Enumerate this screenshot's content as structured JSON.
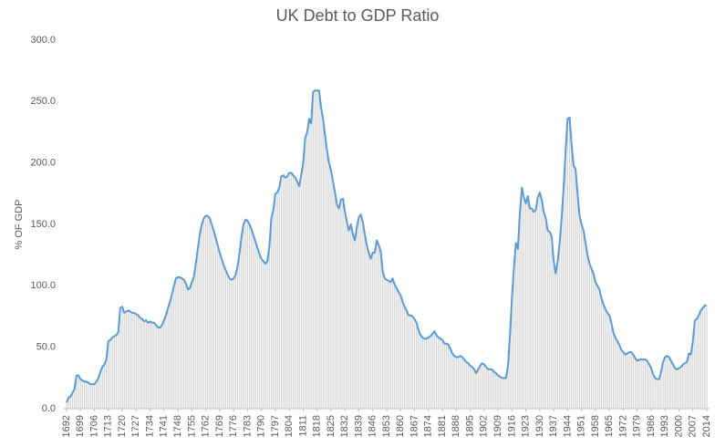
{
  "chart_data": {
    "type": "line",
    "title": "UK Debt to GDP Ratio",
    "y_label": "% OF GDP",
    "x": [
      1692,
      1693,
      1694,
      1695,
      1696,
      1697,
      1698,
      1699,
      1700,
      1701,
      1702,
      1703,
      1704,
      1705,
      1706,
      1707,
      1708,
      1709,
      1710,
      1711,
      1712,
      1713,
      1714,
      1715,
      1716,
      1717,
      1718,
      1719,
      1720,
      1721,
      1722,
      1723,
      1724,
      1725,
      1726,
      1727,
      1728,
      1729,
      1730,
      1731,
      1732,
      1733,
      1734,
      1735,
      1736,
      1737,
      1738,
      1739,
      1740,
      1741,
      1742,
      1743,
      1744,
      1745,
      1746,
      1747,
      1748,
      1749,
      1750,
      1751,
      1752,
      1753,
      1754,
      1755,
      1756,
      1757,
      1758,
      1759,
      1760,
      1761,
      1762,
      1763,
      1764,
      1765,
      1766,
      1767,
      1768,
      1769,
      1770,
      1771,
      1772,
      1773,
      1774,
      1775,
      1776,
      1777,
      1778,
      1779,
      1780,
      1781,
      1782,
      1783,
      1784,
      1785,
      1786,
      1787,
      1788,
      1789,
      1790,
      1791,
      1792,
      1793,
      1794,
      1795,
      1796,
      1797,
      1798,
      1799,
      1800,
      1801,
      1802,
      1803,
      1804,
      1805,
      1806,
      1807,
      1808,
      1809,
      1810,
      1811,
      1812,
      1813,
      1814,
      1815,
      1816,
      1817,
      1818,
      1819,
      1820,
      1821,
      1822,
      1823,
      1824,
      1825,
      1826,
      1827,
      1828,
      1829,
      1830,
      1831,
      1832,
      1833,
      1834,
      1835,
      1836,
      1837,
      1838,
      1839,
      1840,
      1841,
      1842,
      1843,
      1844,
      1845,
      1846,
      1847,
      1848,
      1849,
      1850,
      1851,
      1852,
      1853,
      1854,
      1855,
      1856,
      1857,
      1858,
      1859,
      1860,
      1861,
      1862,
      1863,
      1864,
      1865,
      1866,
      1867,
      1868,
      1869,
      1870,
      1871,
      1872,
      1873,
      1874,
      1875,
      1876,
      1877,
      1878,
      1879,
      1880,
      1881,
      1882,
      1883,
      1884,
      1885,
      1886,
      1887,
      1888,
      1889,
      1890,
      1891,
      1892,
      1893,
      1894,
      1895,
      1896,
      1897,
      1898,
      1899,
      1900,
      1901,
      1902,
      1903,
      1904,
      1905,
      1906,
      1907,
      1908,
      1909,
      1910,
      1911,
      1912,
      1913,
      1914,
      1915,
      1916,
      1917,
      1918,
      1919,
      1920,
      1921,
      1922,
      1923,
      1924,
      1925,
      1926,
      1927,
      1928,
      1929,
      1930,
      1931,
      1932,
      1933,
      1934,
      1935,
      1936,
      1937,
      1938,
      1939,
      1940,
      1941,
      1942,
      1943,
      1944,
      1945,
      1946,
      1947,
      1948,
      1949,
      1950,
      1951,
      1952,
      1953,
      1954,
      1955,
      1956,
      1957,
      1958,
      1959,
      1960,
      1961,
      1962,
      1963,
      1964,
      1965,
      1966,
      1967,
      1968,
      1969,
      1970,
      1971,
      1972,
      1973,
      1974,
      1975,
      1976,
      1977,
      1978,
      1979,
      1980,
      1981,
      1982,
      1983,
      1984,
      1985,
      1986,
      1987,
      1988,
      1989,
      1990,
      1991,
      1992,
      1993,
      1994,
      1995,
      1996,
      1997,
      1998,
      1999,
      2000,
      2001,
      2002,
      2003,
      2004,
      2005,
      2006,
      2007,
      2008,
      2009,
      2010,
      2011,
      2012,
      2013,
      2014
    ],
    "values": [
      5,
      9,
      10,
      13,
      16,
      27,
      27,
      24,
      23,
      22,
      22,
      21,
      20,
      20,
      20,
      22,
      25,
      30,
      34,
      36,
      40,
      55,
      56,
      58,
      59,
      60,
      62,
      82,
      83,
      78,
      79,
      80,
      79,
      78,
      78,
      77,
      76,
      74,
      73,
      71,
      72,
      70,
      71,
      70,
      70,
      68,
      66,
      66,
      68,
      72,
      76,
      82,
      87,
      93,
      100,
      106,
      107,
      107,
      106,
      105,
      102,
      97,
      98,
      103,
      107,
      118,
      130,
      142,
      150,
      155,
      157,
      157,
      155,
      150,
      145,
      139,
      133,
      127,
      122,
      117,
      113,
      109,
      106,
      105,
      106,
      109,
      116,
      127,
      140,
      150,
      154,
      153,
      150,
      146,
      141,
      136,
      131,
      126,
      122,
      120,
      118,
      120,
      132,
      155,
      162,
      175,
      176,
      180,
      189,
      190,
      188,
      189,
      192,
      192,
      190,
      188,
      185,
      181,
      190,
      200,
      220,
      225,
      236,
      232,
      258,
      259,
      259,
      259,
      245,
      236,
      222,
      210,
      200,
      194,
      185,
      176,
      166,
      163,
      170,
      171,
      160,
      152,
      145,
      150,
      142,
      137,
      148,
      156,
      158,
      152,
      142,
      133,
      127,
      122,
      127,
      127,
      137,
      133,
      128,
      112,
      106,
      105,
      104,
      103,
      106,
      101,
      98,
      95,
      92,
      87,
      83,
      80,
      76,
      76,
      75,
      73,
      70,
      64,
      60,
      58,
      57,
      57,
      58,
      59,
      61,
      63,
      60,
      58,
      57,
      56,
      53,
      53,
      52,
      49,
      45,
      43,
      42,
      42,
      43,
      42,
      40,
      38,
      37,
      35,
      34,
      32,
      29,
      32,
      35,
      37,
      36,
      34,
      32,
      32,
      32,
      30,
      29,
      27,
      26,
      25,
      25,
      25,
      35,
      60,
      90,
      115,
      135,
      130,
      160,
      180,
      172,
      167,
      173,
      163,
      163,
      160,
      162,
      172,
      176,
      170,
      160,
      155,
      145,
      144,
      140,
      120,
      110,
      120,
      135,
      155,
      180,
      210,
      236,
      237,
      215,
      198,
      195,
      175,
      157,
      150,
      145,
      135,
      125,
      118,
      114,
      110,
      103,
      100,
      97,
      90,
      85,
      81,
      78,
      76,
      70,
      62,
      58,
      55,
      52,
      48,
      46,
      44,
      45,
      46,
      46,
      44,
      41,
      39,
      40,
      40,
      40,
      40,
      39,
      36,
      33,
      28,
      25,
      24,
      24,
      30,
      38,
      42,
      43,
      42,
      39,
      36,
      33,
      32,
      33,
      34,
      36,
      37,
      38,
      45,
      44,
      55,
      72,
      73,
      76,
      80,
      82,
      84,
      84
    ],
    "color": "#5b9bd5",
    "bar_color": "#d4d4d4",
    "xlim": [
      1692,
      2014
    ],
    "xticks": [
      1692,
      1699,
      1706,
      1713,
      1720,
      1727,
      1734,
      1741,
      1748,
      1755,
      1762,
      1769,
      1776,
      1783,
      1790,
      1797,
      1804,
      1811,
      1818,
      1825,
      1832,
      1839,
      1846,
      1853,
      1860,
      1867,
      1874,
      1881,
      1888,
      1895,
      1902,
      1909,
      1916,
      1923,
      1930,
      1937,
      1944,
      1951,
      1958,
      1965,
      1972,
      1979,
      1986,
      1993,
      2000,
      2007,
      2014
    ],
    "ylim": [
      0,
      300
    ],
    "yticks": [
      {
        "value": 0,
        "label": "0.0"
      },
      {
        "value": 50,
        "label": "50.0"
      },
      {
        "value": 100,
        "label": "100.0"
      },
      {
        "value": 150,
        "label": "150.0"
      },
      {
        "value": 200,
        "label": "200.0"
      },
      {
        "value": 250,
        "label": "250.0"
      },
      {
        "value": 300,
        "label": "300.0"
      }
    ],
    "grid": false
  }
}
